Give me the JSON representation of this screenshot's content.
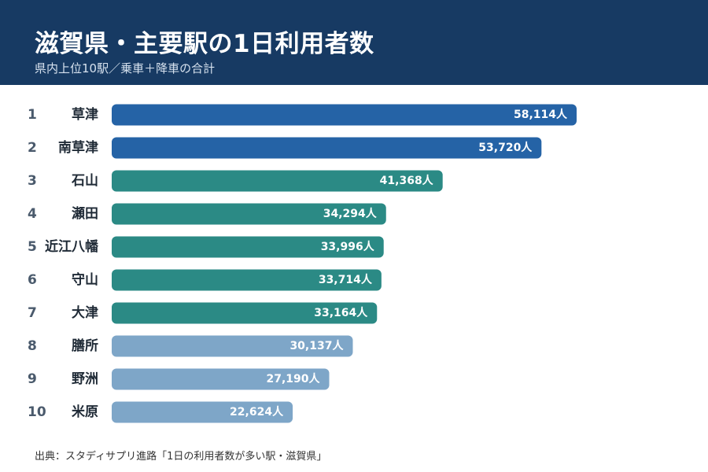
{
  "colors": {
    "header_bg": "#173a63",
    "top_bar": "#2563a6",
    "mid_bar": "#2b8a85",
    "low_bar": "#7ea6c8"
  },
  "chart_data": {
    "type": "bar",
    "orientation": "horizontal",
    "title": "滋賀県・主要駅の1日利用者数",
    "subtitle": "県内上位10駅／乗車＋降車の合計",
    "source": "出典：スタディサプリ進路「1日の利用者数が多い駅・滋賀県」",
    "ranks": [
      "1",
      "2",
      "3",
      "4",
      "5",
      "6",
      "7",
      "8",
      "9",
      "10"
    ],
    "categories": [
      "草津",
      "南草津",
      "石山",
      "瀬田",
      "近江八幡",
      "守山",
      "大津",
      "膳所",
      "野洲",
      "米原"
    ],
    "values": [
      58114,
      53720,
      41368,
      34294,
      33996,
      33714,
      33164,
      30137,
      27190,
      22624
    ],
    "value_labels": [
      "58,114人",
      "53,720人",
      "41,368人",
      "34,294人",
      "33,996人",
      "33,714人",
      "33,164人",
      "30,137人",
      "27,190人",
      "22,624人"
    ],
    "bar_color_groups": [
      "top",
      "top",
      "mid",
      "mid",
      "mid",
      "mid",
      "mid",
      "low",
      "low",
      "low"
    ],
    "grid": false,
    "legend": "none"
  }
}
